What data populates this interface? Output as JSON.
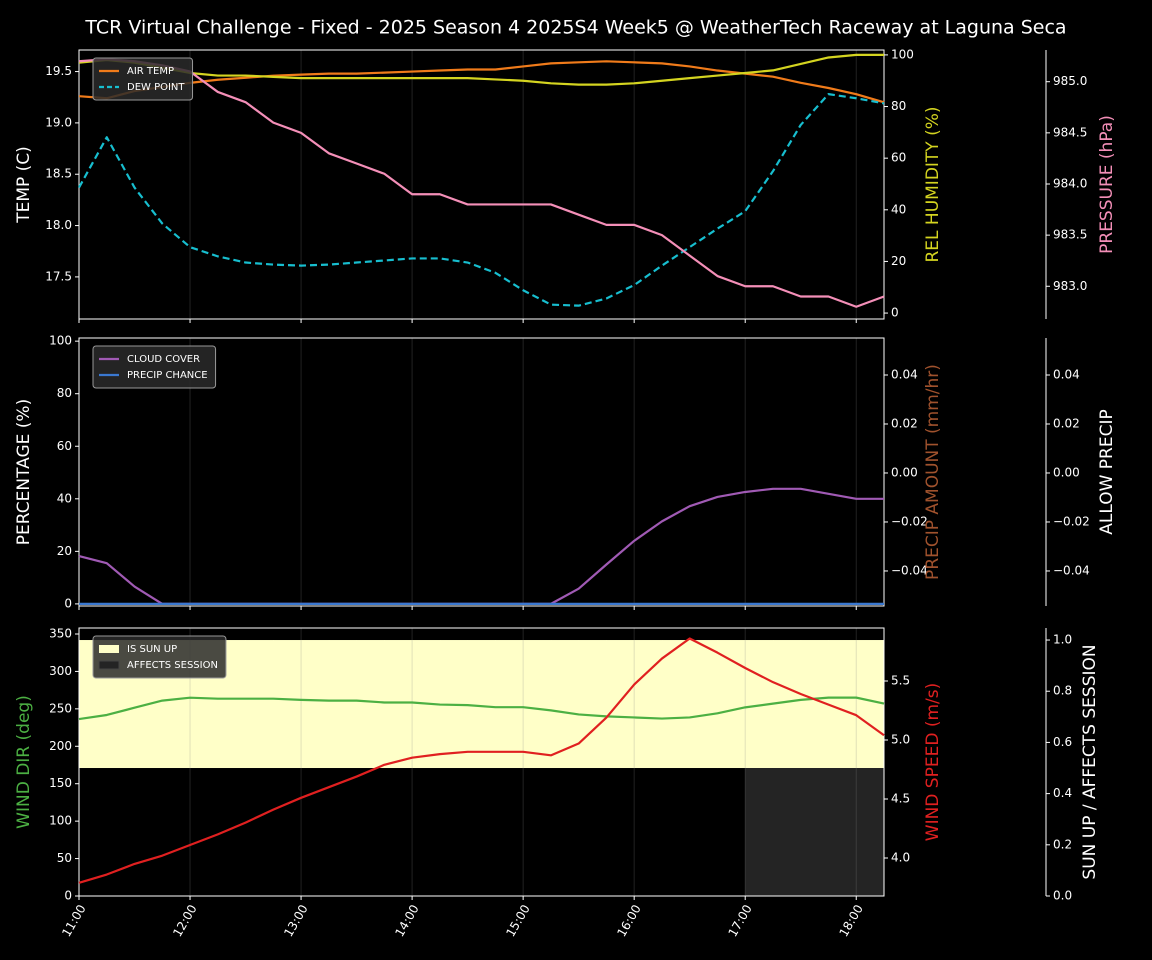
{
  "chart_data": [
    {
      "type": "line",
      "title": "TCR Virtual Challenge - Fixed - 2025 Season 4 2025S4 Week5 @ WeatherTech Raceway at Laguna Seca",
      "x": [
        11,
        11.25,
        11.5,
        11.75,
        12,
        12.25,
        12.5,
        12.75,
        13,
        13.25,
        13.5,
        13.75,
        14,
        14.25,
        14.5,
        14.75,
        15,
        15.25,
        15.5,
        15.75,
        16,
        16.25,
        16.5,
        16.75,
        17,
        17.25,
        17.5,
        17.75,
        18,
        18.25
      ],
      "xlim": [
        11,
        18.25
      ],
      "xticks": [
        11,
        12,
        13,
        14,
        15,
        16,
        17,
        18
      ],
      "ylabel": "TEMP (C)",
      "ylabel_color": "#ffffff",
      "ylim": [
        17.09,
        19.71
      ],
      "yticks": [
        17.5,
        {
          "value": 18,
          "label": "18.0"
        },
        18.5,
        {
          "value": 19,
          "label": "19.0"
        },
        19.5
      ],
      "y2label": "REL HUMIDITY (%)",
      "y2label_color": "#d4d420",
      "y2lim": [
        -2.3,
        101.9
      ],
      "y2ticks": [
        0,
        20,
        40,
        60,
        80,
        100
      ],
      "y3label": "PRESSURE (hPa)",
      "y3label_color": "#f48fb8",
      "y3lim": [
        982.68,
        985.31
      ],
      "y3ticks": [
        {
          "value": 983,
          "label": "983.0"
        },
        983.5,
        {
          "value": 984,
          "label": "984.0"
        },
        984.5,
        {
          "value": 985,
          "label": "985.0"
        }
      ],
      "legend": "upper left",
      "series": [
        {
          "name": "AIR TEMP",
          "color": "#f07b1a",
          "axis": "y",
          "values": [
            19.26,
            19.24,
            19.31,
            19.35,
            19.39,
            19.42,
            19.44,
            19.46,
            19.47,
            19.48,
            19.48,
            19.49,
            19.5,
            19.51,
            19.52,
            19.52,
            19.55,
            19.58,
            19.59,
            19.6,
            19.59,
            19.58,
            19.55,
            19.51,
            19.48,
            19.45,
            19.39,
            19.34,
            19.28,
            19.2
          ]
        },
        {
          "name": "DEW POINT",
          "color": "#17becf",
          "axis": "y",
          "dashed": true,
          "values": [
            18.37,
            18.86,
            18.37,
            18.02,
            17.79,
            17.7,
            17.64,
            17.62,
            17.61,
            17.62,
            17.64,
            17.66,
            17.68,
            17.68,
            17.64,
            17.54,
            17.37,
            17.23,
            17.22,
            17.29,
            17.42,
            17.61,
            17.79,
            17.97,
            18.14,
            18.53,
            18.98,
            19.28,
            19.24,
            19.19
          ]
        },
        {
          "color": "#d4d420",
          "axis": "y2",
          "values": [
            97,
            98,
            97,
            95,
            93,
            92,
            92,
            91.5,
            91,
            91,
            91,
            91,
            91,
            91,
            91,
            90.5,
            90,
            89,
            88.5,
            88.5,
            89,
            90,
            91,
            92,
            93,
            94,
            96.5,
            99,
            100,
            100
          ]
        },
        {
          "color": "#f48fb8",
          "axis": "y3",
          "values": [
            985.2,
            985.22,
            985.2,
            985.16,
            985.1,
            984.9,
            984.8,
            984.6,
            984.5,
            984.3,
            984.2,
            984.1,
            983.9,
            983.9,
            983.8,
            983.8,
            983.8,
            983.8,
            983.7,
            983.6,
            983.6,
            983.5,
            983.3,
            983.1,
            983,
            983,
            982.9,
            982.9,
            982.8,
            982.9
          ]
        }
      ]
    },
    {
      "type": "line",
      "x": [
        11,
        11.25,
        11.5,
        11.75,
        12,
        12.25,
        12.5,
        12.75,
        13,
        13.25,
        13.5,
        13.75,
        14,
        14.25,
        14.5,
        14.75,
        15,
        15.25,
        15.5,
        15.75,
        16,
        16.25,
        16.5,
        16.75,
        17,
        17.25,
        17.5,
        17.75,
        18,
        18.25
      ],
      "xlim": [
        11,
        18.25
      ],
      "xticks": [
        11,
        12,
        13,
        14,
        15,
        16,
        17,
        18
      ],
      "ylabel": "PERCENTAGE (%)",
      "ylabel_color": "#ffffff",
      "ylim": [
        -0.8,
        101.2
      ],
      "yticks": [
        0,
        20,
        40,
        60,
        80,
        100
      ],
      "y2label": "PRECIP AMOUNT (mm/hr)",
      "y2label_color": "#a0522d",
      "y2lim": [
        -0.0543,
        0.0551
      ],
      "y2ticks": [
        {
          "value": -0.04,
          "label": "−0.04"
        },
        {
          "value": -0.02,
          "label": "−0.02"
        },
        {
          "value": 0,
          "label": "0.00"
        },
        0.02,
        0.04
      ],
      "y3label": "ALLOW PRECIP",
      "y3label_color": "#ffffff",
      "y3lim": [
        -0.0543,
        0.0551
      ],
      "y3ticks": [
        {
          "value": -0.04,
          "label": "−0.04"
        },
        {
          "value": -0.02,
          "label": "−0.02"
        },
        {
          "value": 0,
          "label": "0.00"
        },
        0.02,
        0.04
      ],
      "legend": "upper left",
      "series": [
        {
          "name": "CLOUD COVER",
          "color": "#a05ab4",
          "axis": "y",
          "values": [
            18.2,
            15.5,
            6.6,
            0,
            0,
            0,
            0,
            0,
            0,
            0,
            0,
            0,
            0,
            0,
            0,
            0,
            0,
            0,
            5.8,
            15,
            24,
            31.4,
            37.2,
            40.7,
            42.6,
            43.8,
            43.8,
            41.9,
            40,
            40
          ]
        },
        {
          "name": "PRECIP CHANCE",
          "color": "#3a78d0",
          "axis": "y",
          "values": [
            0,
            0,
            0,
            0,
            0,
            0,
            0,
            0,
            0,
            0,
            0,
            0,
            0,
            0,
            0,
            0,
            0,
            0,
            0,
            0,
            0,
            0,
            0,
            0,
            0,
            0,
            0,
            0,
            0,
            0
          ]
        }
      ]
    },
    {
      "type": "line",
      "x": [
        11,
        11.25,
        11.5,
        11.75,
        12,
        12.25,
        12.5,
        12.75,
        13,
        13.25,
        13.5,
        13.75,
        14,
        14.25,
        14.5,
        14.75,
        15,
        15.25,
        15.5,
        15.75,
        16,
        16.25,
        16.5,
        16.75,
        17,
        17.25,
        17.5,
        17.75,
        18,
        18.25
      ],
      "xlim": [
        11,
        18.25
      ],
      "xticks": [
        {
          "value": 11,
          "label": "11:00"
        },
        {
          "value": 12,
          "label": "12:00"
        },
        {
          "value": 13,
          "label": "13:00"
        },
        {
          "value": 14,
          "label": "14:00"
        },
        {
          "value": 15,
          "label": "15:00"
        },
        {
          "value": 16,
          "label": "16:00"
        },
        {
          "value": 17,
          "label": "17:00"
        },
        {
          "value": 18,
          "label": "18:00"
        }
      ],
      "ylabel": "WIND DIR (deg)",
      "ylabel_color": "#4cb043",
      "ylim": [
        0,
        358
      ],
      "yticks": [
        0,
        50,
        100,
        150,
        200,
        250,
        300,
        350
      ],
      "y2label": "WIND SPEED (m/s)",
      "y2label_color": "#e02020",
      "y2lim": [
        3.678,
        5.949
      ],
      "y2ticks": [
        {
          "value": 4,
          "label": "4.0"
        },
        4.5,
        {
          "value": 5,
          "label": "5.0"
        },
        5.5
      ],
      "y3label": "SUN UP / AFFECTS SESSION",
      "y3label_color": "#ffffff",
      "y3lim": [
        0,
        1.047
      ],
      "y3ticks": [
        {
          "value": 0,
          "label": "0.0"
        },
        0.2,
        0.4,
        0.6,
        0.8,
        {
          "value": 1,
          "label": "1.0"
        }
      ],
      "legend": "upper left",
      "series": [
        {
          "name": "IS SUN UP",
          "color": "#ffffc8",
          "axis": "y3",
          "band": true,
          "values": [
            1,
            1,
            1,
            1,
            1,
            1,
            1,
            1,
            1,
            1,
            1,
            1,
            1,
            1,
            1,
            1,
            1,
            1,
            1,
            1,
            1,
            1,
            1,
            1,
            1,
            1,
            1,
            1,
            1,
            1
          ]
        },
        {
          "name": "AFFECTS SESSION",
          "color": "#242424",
          "axis": "y3",
          "band": true,
          "values": [
            0,
            0,
            0,
            0,
            0,
            0,
            0,
            0,
            0,
            0,
            0,
            0,
            0,
            0,
            0,
            0,
            0,
            0,
            0,
            0,
            0,
            0,
            0,
            0,
            1,
            1,
            1,
            1,
            1,
            1
          ]
        },
        {
          "color": "#4cb043",
          "axis": "y",
          "values": [
            236.4,
            241.8,
            251.5,
            261,
            264.9,
            263.6,
            263.6,
            263.6,
            262,
            261,
            261,
            258.5,
            258.5,
            255.7,
            255,
            252.2,
            252.2,
            248,
            242.5,
            240,
            238.5,
            237,
            238.5,
            244,
            252,
            257,
            262,
            265,
            265,
            257
          ]
        },
        {
          "color": "#e02020",
          "axis": "y2",
          "values": [
            3.79,
            3.86,
            3.95,
            4.02,
            4.11,
            4.2,
            4.3,
            4.41,
            4.51,
            4.6,
            4.69,
            4.79,
            4.85,
            4.88,
            4.9,
            4.9,
            4.9,
            4.87,
            4.97,
            5.19,
            5.47,
            5.69,
            5.86,
            5.74,
            5.61,
            5.49,
            5.39,
            5.3,
            5.21,
            5.04
          ]
        }
      ]
    }
  ]
}
